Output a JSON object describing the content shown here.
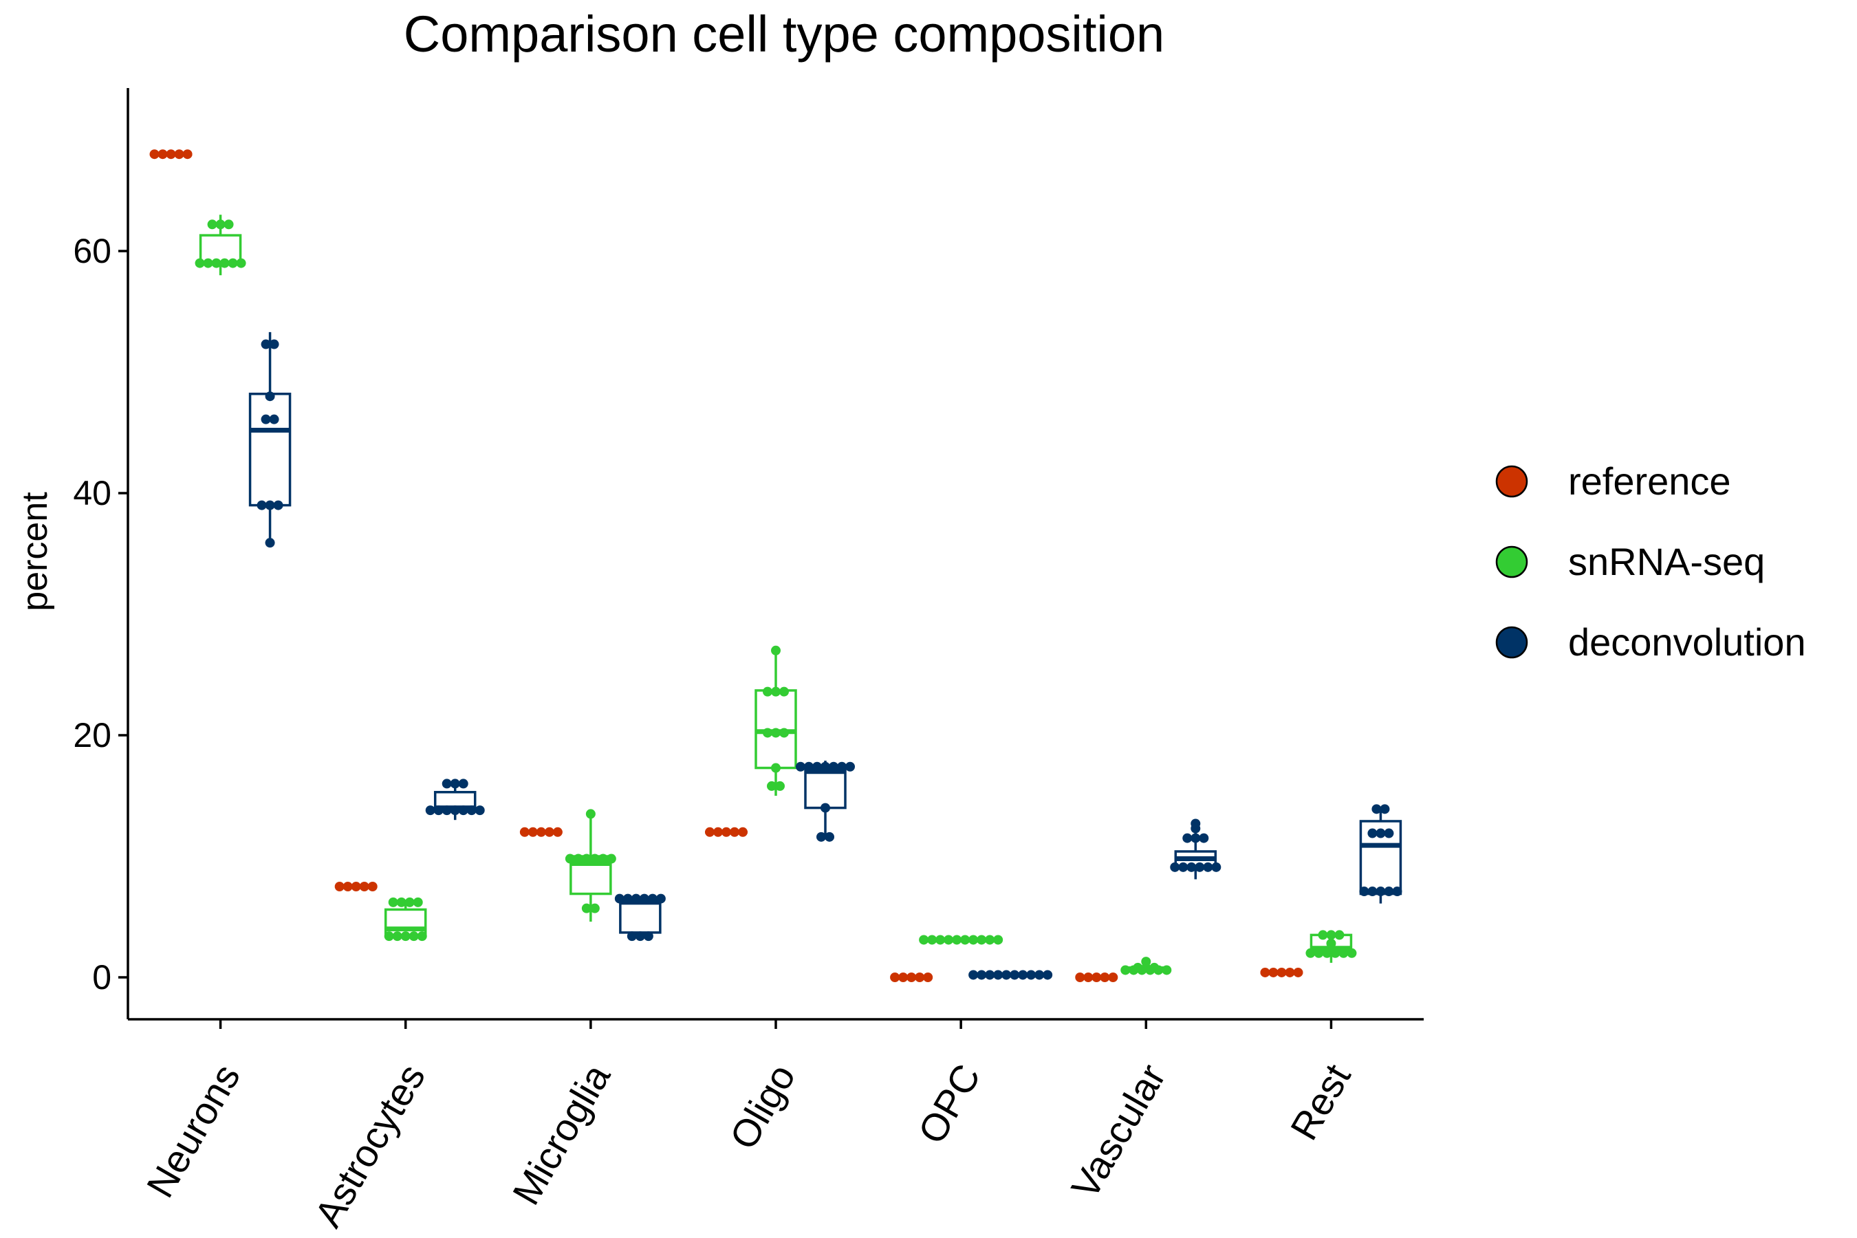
{
  "chart_data": {
    "type": "boxplot",
    "title": "Comparison cell type composition",
    "xlabel": "",
    "ylabel": "percent",
    "ylim": [
      -3.3,
      73
    ],
    "yticks": [
      0,
      20,
      40,
      60
    ],
    "grid": false,
    "legend_position": "right",
    "categories": [
      "Neurons",
      "Astrocytes",
      "Microglia",
      "Oligo",
      "OPC",
      "Vascular",
      "Rest"
    ],
    "series": [
      {
        "name": "reference",
        "color": "#cc3300",
        "boxes": [
          {
            "min": 68.0,
            "q1": 68.0,
            "median": 68.0,
            "q3": 68.0,
            "max": 68.0,
            "points": [
              68.0,
              68.0,
              68.0,
              68.0,
              68.0
            ]
          },
          {
            "min": 7.5,
            "q1": 7.5,
            "median": 7.5,
            "q3": 7.5,
            "max": 7.5,
            "points": [
              7.5,
              7.5,
              7.5,
              7.5,
              7.5
            ]
          },
          {
            "min": 12.0,
            "q1": 12.0,
            "median": 12.0,
            "q3": 12.0,
            "max": 12.0,
            "points": [
              12.0,
              12.0,
              12.0,
              12.0,
              12.0
            ]
          },
          {
            "min": 12.0,
            "q1": 12.0,
            "median": 12.0,
            "q3": 12.0,
            "max": 12.0,
            "points": [
              12.0,
              12.0,
              12.0,
              12.0,
              12.0
            ]
          },
          {
            "min": 0.0,
            "q1": 0.0,
            "median": 0.0,
            "q3": 0.0,
            "max": 0.0,
            "points": [
              0.0,
              0.0,
              0.0,
              0.0,
              0.0
            ]
          },
          {
            "min": 0.0,
            "q1": 0.0,
            "median": 0.0,
            "q3": 0.0,
            "max": 0.0,
            "points": [
              0.0,
              0.0,
              0.0,
              0.0,
              0.0
            ]
          },
          {
            "min": 0.4,
            "q1": 0.4,
            "median": 0.4,
            "q3": 0.4,
            "max": 0.4,
            "points": [
              0.4,
              0.4,
              0.4,
              0.4,
              0.4
            ]
          }
        ]
      },
      {
        "name": "snRNA-seq",
        "color": "#33cc33",
        "boxes": [
          {
            "min": 58.0,
            "q1": 58.9,
            "median": 59.0,
            "q3": 61.3,
            "max": 63.0,
            "points": [
              59.0,
              59.0,
              59.0,
              59.0,
              59.0,
              59.0,
              62.2,
              62.2,
              62.2
            ]
          },
          {
            "min": 3.3,
            "q1": 3.4,
            "median": 4.0,
            "q3": 5.6,
            "max": 6.3,
            "points": [
              3.4,
              3.4,
              3.4,
              3.4,
              3.4,
              6.2,
              6.2,
              6.2,
              6.2
            ]
          },
          {
            "min": 4.6,
            "q1": 6.9,
            "median": 9.4,
            "q3": 10.0,
            "max": 13.5,
            "points": [
              9.8,
              9.8,
              9.8,
              9.8,
              9.8,
              9.8,
              13.5,
              5.7,
              5.7
            ]
          },
          {
            "min": 15.0,
            "q1": 17.3,
            "median": 20.3,
            "q3": 23.7,
            "max": 27.0,
            "points": [
              27.0,
              23.6,
              23.6,
              23.6,
              20.2,
              20.2,
              20.2,
              17.3,
              15.8,
              15.8
            ]
          },
          {
            "min": 3.1,
            "q1": 3.1,
            "median": 3.1,
            "q3": 3.1,
            "max": 3.1,
            "points": [
              3.1,
              3.1,
              3.1,
              3.1,
              3.1,
              3.1,
              3.1,
              3.1,
              3.1,
              3.1
            ]
          },
          {
            "min": 0.5,
            "q1": 0.6,
            "median": 0.7,
            "q3": 0.8,
            "max": 1.3,
            "points": [
              0.6,
              0.6,
              0.6,
              0.6,
              0.6,
              0.6,
              0.8,
              0.8,
              0.8,
              1.3
            ]
          },
          {
            "min": 1.2,
            "q1": 2.0,
            "median": 2.4,
            "q3": 3.5,
            "max": 3.6,
            "points": [
              2.0,
              2.0,
              2.0,
              2.0,
              2.0,
              2.0,
              2.8,
              3.5,
              3.5,
              3.5
            ]
          }
        ]
      },
      {
        "name": "deconvolution",
        "color": "#003366",
        "boxes": [
          {
            "min": 35.8,
            "q1": 39.0,
            "median": 45.2,
            "q3": 48.2,
            "max": 53.3,
            "points": [
              52.3,
              52.3,
              48.0,
              46.1,
              46.1,
              39.0,
              39.0,
              39.0,
              35.9
            ]
          },
          {
            "min": 13.0,
            "q1": 13.8,
            "median": 14.0,
            "q3": 15.3,
            "max": 16.2,
            "points": [
              13.8,
              13.8,
              13.8,
              13.8,
              13.8,
              13.8,
              13.8,
              16.0,
              16.0,
              16.0
            ]
          },
          {
            "min": 3.3,
            "q1": 3.7,
            "median": 6.2,
            "q3": 6.5,
            "max": 6.7,
            "points": [
              6.5,
              6.5,
              6.5,
              6.5,
              6.5,
              6.5,
              3.4,
              3.4,
              3.4
            ]
          },
          {
            "min": 11.5,
            "q1": 14.0,
            "median": 17.0,
            "q3": 17.3,
            "max": 17.9,
            "points": [
              17.4,
              17.4,
              17.4,
              17.4,
              17.4,
              17.4,
              17.4,
              14.0,
              11.6,
              11.6
            ]
          },
          {
            "min": 0.2,
            "q1": 0.2,
            "median": 0.2,
            "q3": 0.2,
            "max": 0.2,
            "points": [
              0.2,
              0.2,
              0.2,
              0.2,
              0.2,
              0.2,
              0.2,
              0.2,
              0.2,
              0.2
            ]
          },
          {
            "min": 8.1,
            "q1": 9.0,
            "median": 9.8,
            "q3": 10.4,
            "max": 12.9,
            "points": [
              9.1,
              9.1,
              9.1,
              9.1,
              9.1,
              9.1,
              11.5,
              11.5,
              11.5,
              12.3,
              12.7
            ]
          },
          {
            "min": 6.1,
            "q1": 6.9,
            "median": 10.9,
            "q3": 12.9,
            "max": 13.9,
            "points": [
              13.9,
              13.9,
              11.9,
              11.9,
              11.9,
              7.1,
              7.1,
              7.1,
              7.1,
              7.1
            ]
          }
        ]
      }
    ]
  }
}
